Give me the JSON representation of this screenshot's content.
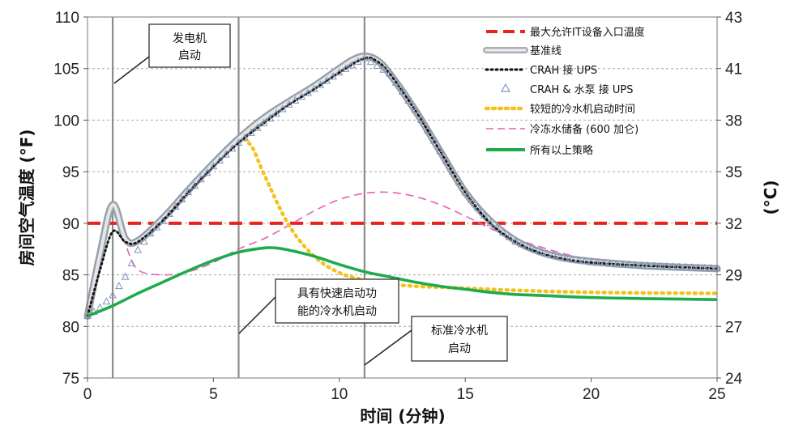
{
  "chart_data": {
    "type": "line",
    "xlabel": "时间 (分钟)",
    "ylabel_left": "房间空气温度 (°F)",
    "ylabel_right": "(°C)",
    "xlim": [
      0,
      25
    ],
    "ylim_left": [
      75,
      110
    ],
    "ylim_right": [
      24,
      43
    ],
    "x_ticks": [
      "0",
      "5",
      "10",
      "15",
      "20",
      "25"
    ],
    "y_ticks_left": [
      "75",
      "80",
      "85",
      "90",
      "95",
      "100",
      "105",
      "110"
    ],
    "y_ticks_right": [
      "24",
      "27",
      "29",
      "32",
      "35",
      "38",
      "41",
      "43"
    ],
    "grid": "horizontal-dashed",
    "legend_position": "top-right",
    "vlines": [
      1,
      6,
      11
    ],
    "threshold": {
      "name": "最大允许IT设备入口温度",
      "value": 90,
      "color": "#e8231b"
    },
    "series": [
      {
        "name": "基准线",
        "color": "#c7cbd0",
        "style": "thick-gray",
        "x": [
          0,
          0.5,
          1,
          1.5,
          2,
          3,
          4,
          5,
          6,
          7,
          8,
          9,
          10,
          10.5,
          11,
          11.5,
          12,
          13,
          14,
          15,
          16,
          17,
          18,
          19,
          20,
          22,
          24,
          25
        ],
        "y": [
          81,
          87,
          91.8,
          88.5,
          88.3,
          90.5,
          93.2,
          95.8,
          98.2,
          100.2,
          101.8,
          103.3,
          105,
          105.8,
          106.2,
          105.8,
          104.5,
          101,
          97,
          93,
          90.2,
          88.3,
          87.2,
          86.6,
          86.3,
          85.9,
          85.7,
          85.6
        ]
      },
      {
        "name": "CRAH 接 UPS",
        "color": "#111111",
        "style": "dotted",
        "x": [
          0,
          0.5,
          1,
          1.5,
          2,
          3,
          4,
          5,
          6,
          7,
          8,
          9,
          10,
          11,
          11.5,
          12,
          13,
          14,
          15,
          16,
          17,
          18,
          19,
          20,
          22,
          24,
          25
        ],
        "y": [
          81,
          85.5,
          89.2,
          88.2,
          88.2,
          90.3,
          93,
          95.5,
          97.8,
          99.7,
          101.5,
          103,
          104.6,
          106,
          105.7,
          104.5,
          101,
          97,
          93,
          90,
          88.2,
          87.1,
          86.5,
          86.2,
          85.9,
          85.7,
          85.6
        ]
      },
      {
        "name": "CRAH & 水泵 接 UPS",
        "color": "#7f95b8",
        "style": "triangles",
        "x": [
          0,
          0.5,
          1,
          1.5,
          2,
          2.5,
          3,
          4,
          5,
          6,
          7,
          8,
          9,
          10,
          11,
          12,
          13,
          14,
          15,
          16,
          17,
          18,
          19,
          20,
          21,
          22,
          23,
          24,
          25
        ],
        "y": [
          81,
          81.8,
          83,
          84.8,
          87.4,
          89,
          90.2,
          93,
          95.5,
          97.8,
          99.7,
          101.5,
          103,
          104.6,
          106,
          104.5,
          101,
          97,
          93,
          90,
          88.2,
          87.2,
          86.6,
          86.2,
          86,
          85.9,
          85.8,
          85.7,
          85.6
        ]
      },
      {
        "name": "较短的冷水机启动时间",
        "color": "#f4c11d",
        "style": "dotted-thick",
        "x": [
          0,
          0.5,
          1,
          1.5,
          2,
          3,
          4,
          5,
          6,
          6.5,
          7,
          8,
          9,
          10,
          11,
          12,
          13,
          14,
          15,
          17,
          20,
          25
        ],
        "y": [
          81,
          86.5,
          91.5,
          88.3,
          88.2,
          90.5,
          93.2,
          95.8,
          98,
          97.5,
          94.8,
          89.8,
          86.8,
          85.2,
          84.5,
          84.1,
          83.9,
          83.8,
          83.7,
          83.5,
          83.3,
          83.2
        ]
      },
      {
        "name": "冷冻水储备 (600 加仑)",
        "color": "#e85fb3",
        "style": "dashed",
        "x": [
          0,
          0.5,
          1,
          1.5,
          2,
          3,
          4,
          5,
          6,
          7,
          8,
          9,
          10,
          11,
          12,
          13,
          14,
          15,
          16,
          17,
          18,
          19,
          20,
          22,
          25
        ],
        "y": [
          81,
          86.5,
          91.5,
          88,
          85.5,
          85,
          85.3,
          86.2,
          87.5,
          88.5,
          89.8,
          91.2,
          92.3,
          92.9,
          93,
          92.6,
          91.8,
          90.7,
          89.5,
          88.5,
          87.7,
          87,
          86.5,
          86,
          85.5
        ]
      },
      {
        "name": "所有以上策略",
        "color": "#1fab4c",
        "style": "solid-thick",
        "x": [
          0,
          1,
          2,
          3,
          4,
          5,
          6,
          7,
          7.5,
          8,
          9,
          10,
          11,
          12,
          13,
          14,
          15,
          16,
          17,
          18,
          20,
          22,
          25
        ],
        "y": [
          81,
          82,
          83.2,
          84.3,
          85.4,
          86.4,
          87.2,
          87.6,
          87.6,
          87.4,
          86.8,
          86,
          85.3,
          84.8,
          84.3,
          83.9,
          83.6,
          83.3,
          83.1,
          83,
          82.8,
          82.7,
          82.6
        ]
      }
    ],
    "annotations": [
      {
        "lines": [
          "发电机",
          "启动"
        ]
      },
      {
        "lines": [
          "具有快速启动功",
          "能的冷水机启动"
        ]
      },
      {
        "lines": [
          "标准冷水机",
          "启动"
        ]
      }
    ]
  }
}
